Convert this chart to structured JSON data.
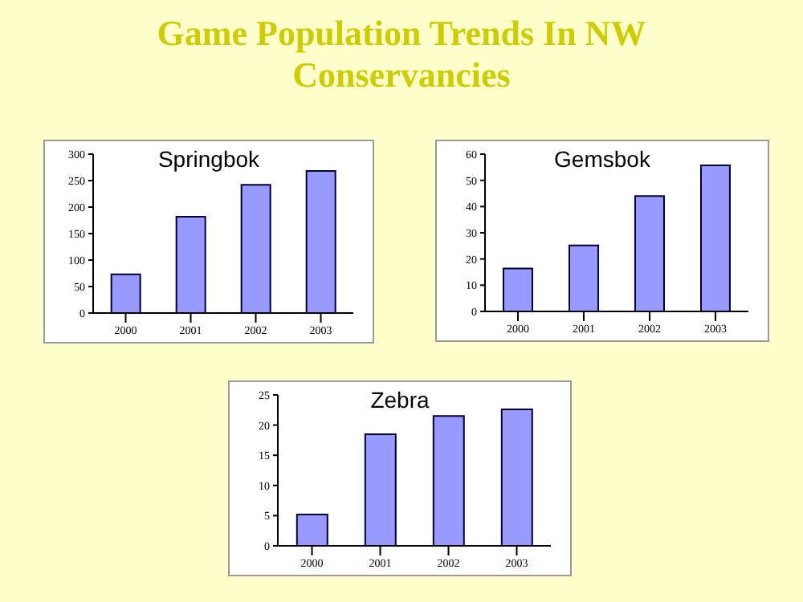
{
  "chart_data": [
    {
      "type": "bar",
      "title": "Springbok",
      "annotations": [
        "Game Population Trends In NW Conservancies"
      ],
      "categories": [
        "2000",
        "2001",
        "2002",
        "2003"
      ],
      "values": [
        73,
        182,
        242,
        268
      ],
      "color": "#9999ff",
      "ylim": [
        0,
        300
      ],
      "yticks": [
        0,
        50,
        100,
        150,
        200,
        250,
        300
      ],
      "grid": false
    },
    {
      "type": "bar",
      "title": "Gemsbok",
      "categories": [
        "2000",
        "2001",
        "2002",
        "2003"
      ],
      "values": [
        16.4,
        25.2,
        44,
        55.7
      ],
      "color": "#9999ff",
      "ylim": [
        0,
        60
      ],
      "yticks": [
        0,
        10,
        20,
        30,
        40,
        50,
        60
      ],
      "grid": false
    },
    {
      "type": "bar",
      "title": "Zebra",
      "categories": [
        "2000",
        "2001",
        "2002",
        "2003"
      ],
      "values": [
        5.2,
        18.5,
        21.5,
        22.6
      ],
      "color": "#9999ff",
      "ylim": [
        0,
        25
      ],
      "yticks": [
        0,
        5,
        10,
        15,
        20,
        25
      ],
      "grid": false
    }
  ]
}
